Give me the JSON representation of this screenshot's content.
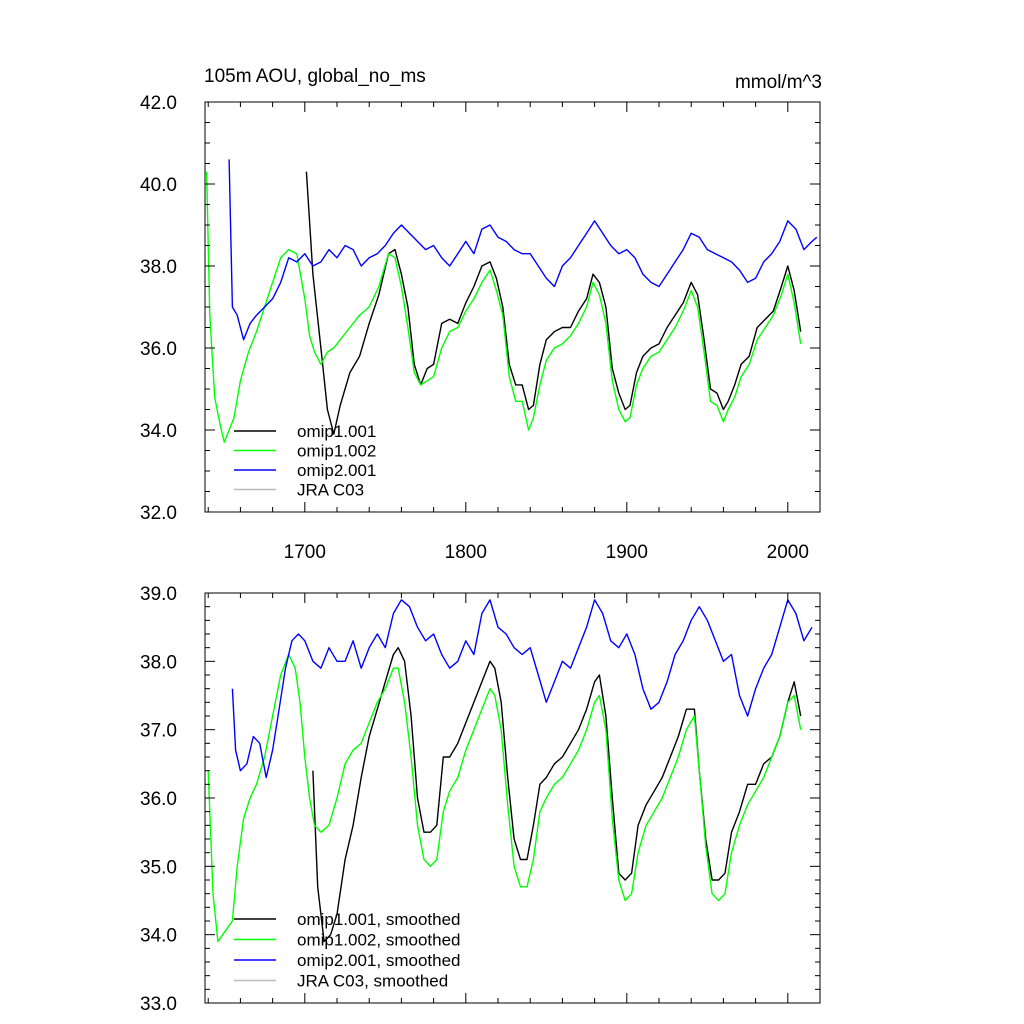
{
  "chart_data": [
    {
      "type": "line",
      "title": "105m AOU, global_no_ms",
      "units": "mmol/m^3",
      "xlim": [
        1638,
        2020
      ],
      "ylim": [
        32.0,
        42.0
      ],
      "xticks": [
        1700,
        1800,
        1900,
        2000
      ],
      "xtick_labels": [
        "1700",
        "1800",
        "1900",
        "2000"
      ],
      "yticks": [
        32,
        34,
        36,
        38,
        40,
        42
      ],
      "ytick_labels": [
        "32.0",
        "34.0",
        "36.0",
        "38.0",
        "40.0",
        "42.0"
      ],
      "legend_position": "bottom-left",
      "series": [
        {
          "name": "omip1.001",
          "color": "#000000",
          "x": [
            1701,
            1705,
            1710,
            1714,
            1718,
            1722,
            1728,
            1734,
            1740,
            1746,
            1752,
            1756,
            1760,
            1764,
            1768,
            1772,
            1776,
            1780,
            1785,
            1790,
            1795,
            1800,
            1805,
            1810,
            1815,
            1819,
            1823,
            1827,
            1831,
            1835,
            1839,
            1842,
            1846,
            1850,
            1855,
            1860,
            1865,
            1870,
            1875,
            1879,
            1883,
            1887,
            1891,
            1895,
            1899,
            1902,
            1906,
            1910,
            1915,
            1920,
            1925,
            1930,
            1935,
            1940,
            1944,
            1948,
            1952,
            1956,
            1960,
            1963,
            1967,
            1971,
            1976,
            1981,
            1986,
            1991,
            1996,
            2000,
            2004,
            2008
          ],
          "y": [
            40.3,
            37.8,
            36.0,
            34.5,
            33.9,
            34.6,
            35.4,
            35.8,
            36.6,
            37.3,
            38.3,
            38.4,
            37.8,
            37.0,
            35.6,
            35.1,
            35.5,
            35.6,
            36.6,
            36.7,
            36.6,
            37.1,
            37.5,
            38.0,
            38.1,
            37.7,
            37.0,
            35.6,
            35.1,
            35.1,
            34.5,
            34.6,
            35.6,
            36.2,
            36.4,
            36.5,
            36.5,
            36.9,
            37.2,
            37.8,
            37.6,
            37.0,
            35.5,
            34.9,
            34.5,
            34.6,
            35.4,
            35.8,
            36.0,
            36.1,
            36.5,
            36.8,
            37.1,
            37.6,
            37.3,
            36.2,
            35.0,
            34.9,
            34.5,
            34.7,
            35.1,
            35.6,
            35.8,
            36.5,
            36.7,
            36.9,
            37.5,
            38.0,
            37.4,
            36.4
          ]
        },
        {
          "name": "omip1.002",
          "color": "#00ff00",
          "x": [
            1639,
            1641,
            1644,
            1647,
            1650,
            1653,
            1656,
            1660,
            1665,
            1670,
            1675,
            1680,
            1685,
            1690,
            1695,
            1700,
            1703,
            1706,
            1710,
            1714,
            1718,
            1722,
            1728,
            1734,
            1740,
            1746,
            1752,
            1756,
            1760,
            1764,
            1768,
            1772,
            1776,
            1780,
            1785,
            1790,
            1795,
            1800,
            1805,
            1810,
            1815,
            1819,
            1823,
            1827,
            1831,
            1835,
            1839,
            1842,
            1846,
            1850,
            1855,
            1860,
            1865,
            1870,
            1875,
            1879,
            1883,
            1887,
            1891,
            1895,
            1899,
            1902,
            1906,
            1910,
            1915,
            1920,
            1925,
            1930,
            1935,
            1940,
            1944,
            1948,
            1952,
            1956,
            1960,
            1963,
            1967,
            1971,
            1976,
            1981,
            1986,
            1991,
            1996,
            2000,
            2004,
            2008
          ],
          "y": [
            40.3,
            36.8,
            34.8,
            34.2,
            33.7,
            34.0,
            34.3,
            35.2,
            35.9,
            36.4,
            37.0,
            37.6,
            38.2,
            38.4,
            38.3,
            37.2,
            36.3,
            35.9,
            35.6,
            35.9,
            36.0,
            36.2,
            36.5,
            36.8,
            37.0,
            37.5,
            38.3,
            38.2,
            37.5,
            36.5,
            35.4,
            35.1,
            35.2,
            35.3,
            36.0,
            36.4,
            36.5,
            36.9,
            37.2,
            37.6,
            37.9,
            37.4,
            36.8,
            35.3,
            34.7,
            34.7,
            34.0,
            34.3,
            35.1,
            35.7,
            36.0,
            36.1,
            36.3,
            36.6,
            37.0,
            37.6,
            37.3,
            36.6,
            35.2,
            34.5,
            34.2,
            34.3,
            35.1,
            35.5,
            35.8,
            35.9,
            36.2,
            36.5,
            36.9,
            37.4,
            37.0,
            35.9,
            34.7,
            34.6,
            34.2,
            34.5,
            34.8,
            35.3,
            35.6,
            36.2,
            36.5,
            36.8,
            37.3,
            37.8,
            37.1,
            36.1
          ]
        },
        {
          "name": "omip2.001",
          "color": "#0000ff",
          "x": [
            1653,
            1655,
            1658,
            1662,
            1666,
            1670,
            1675,
            1680,
            1685,
            1690,
            1695,
            1700,
            1705,
            1710,
            1715,
            1720,
            1725,
            1730,
            1735,
            1740,
            1745,
            1750,
            1755,
            1760,
            1765,
            1770,
            1775,
            1780,
            1785,
            1790,
            1795,
            1800,
            1805,
            1810,
            1815,
            1820,
            1825,
            1830,
            1835,
            1840,
            1845,
            1850,
            1855,
            1860,
            1865,
            1870,
            1875,
            1880,
            1885,
            1890,
            1895,
            1900,
            1905,
            1910,
            1915,
            1920,
            1925,
            1930,
            1935,
            1940,
            1945,
            1950,
            1955,
            1960,
            1965,
            1970,
            1975,
            1980,
            1985,
            1990,
            1995,
            2000,
            2005,
            2010,
            2015,
            2018
          ],
          "y": [
            40.6,
            37.0,
            36.8,
            36.2,
            36.6,
            36.8,
            37.0,
            37.2,
            37.6,
            38.2,
            38.1,
            38.3,
            38.0,
            38.1,
            38.4,
            38.2,
            38.5,
            38.4,
            38.0,
            38.2,
            38.3,
            38.5,
            38.8,
            39.0,
            38.8,
            38.6,
            38.4,
            38.5,
            38.2,
            38.0,
            38.3,
            38.6,
            38.3,
            38.9,
            39.0,
            38.7,
            38.6,
            38.4,
            38.3,
            38.3,
            38.0,
            37.7,
            37.5,
            38.0,
            38.2,
            38.5,
            38.8,
            39.1,
            38.8,
            38.5,
            38.3,
            38.4,
            38.2,
            37.8,
            37.6,
            37.5,
            37.8,
            38.1,
            38.4,
            38.8,
            38.7,
            38.4,
            38.3,
            38.2,
            38.1,
            37.9,
            37.6,
            37.7,
            38.1,
            38.3,
            38.6,
            39.1,
            38.9,
            38.4,
            38.6,
            38.7
          ]
        },
        {
          "name": "JRA C03",
          "color": "#bbbbbb",
          "x": [],
          "y": []
        }
      ]
    },
    {
      "type": "line",
      "title": "",
      "xlim": [
        1638,
        2020
      ],
      "ylim": [
        33.0,
        39.0
      ],
      "xticks": [
        1700,
        1800,
        1900,
        2000
      ],
      "yticks": [
        33,
        34,
        35,
        36,
        37,
        38,
        39
      ],
      "ytick_labels": [
        "33.0",
        "34.0",
        "35.0",
        "36.0",
        "37.0",
        "38.0",
        "39.0"
      ],
      "legend_position": "bottom-left",
      "series": [
        {
          "name": "omip1.001, smoothed",
          "color": "#000000",
          "x": [
            1705,
            1708,
            1712,
            1716,
            1720,
            1725,
            1730,
            1735,
            1740,
            1745,
            1750,
            1755,
            1758,
            1762,
            1766,
            1770,
            1774,
            1778,
            1782,
            1786,
            1790,
            1795,
            1800,
            1805,
            1810,
            1815,
            1818,
            1822,
            1826,
            1830,
            1834,
            1838,
            1842,
            1846,
            1850,
            1855,
            1860,
            1865,
            1870,
            1875,
            1880,
            1883,
            1887,
            1891,
            1895,
            1899,
            1903,
            1907,
            1912,
            1917,
            1922,
            1927,
            1932,
            1937,
            1942,
            1945,
            1949,
            1953,
            1957,
            1961,
            1965,
            1970,
            1975,
            1980,
            1985,
            1990,
            1995,
            2000,
            2004,
            2008
          ],
          "y": [
            36.4,
            34.7,
            33.9,
            34.0,
            34.3,
            35.1,
            35.6,
            36.3,
            36.9,
            37.3,
            37.7,
            38.1,
            38.2,
            38.0,
            37.2,
            36.0,
            35.5,
            35.5,
            35.6,
            36.6,
            36.6,
            36.8,
            37.1,
            37.4,
            37.7,
            38.0,
            37.9,
            37.4,
            36.3,
            35.4,
            35.1,
            35.1,
            35.6,
            36.2,
            36.3,
            36.5,
            36.6,
            36.8,
            37.0,
            37.3,
            37.7,
            37.8,
            37.2,
            36.0,
            34.9,
            34.8,
            34.9,
            35.6,
            35.9,
            36.1,
            36.3,
            36.6,
            36.9,
            37.3,
            37.3,
            36.4,
            35.4,
            34.8,
            34.8,
            34.9,
            35.5,
            35.8,
            36.2,
            36.2,
            36.5,
            36.6,
            36.9,
            37.4,
            37.7,
            37.2
          ]
        },
        {
          "name": "omip1.002, smoothed",
          "color": "#00ff00",
          "x": [
            1640,
            1643,
            1646,
            1649,
            1652,
            1655,
            1658,
            1662,
            1666,
            1670,
            1675,
            1680,
            1685,
            1690,
            1694,
            1697,
            1700,
            1703,
            1706,
            1710,
            1715,
            1720,
            1725,
            1730,
            1735,
            1740,
            1745,
            1750,
            1755,
            1758,
            1762,
            1766,
            1770,
            1774,
            1778,
            1782,
            1786,
            1790,
            1795,
            1800,
            1805,
            1810,
            1815,
            1818,
            1822,
            1826,
            1830,
            1834,
            1838,
            1842,
            1846,
            1850,
            1855,
            1860,
            1865,
            1870,
            1875,
            1880,
            1883,
            1887,
            1891,
            1895,
            1899,
            1903,
            1907,
            1912,
            1917,
            1922,
            1927,
            1932,
            1937,
            1942,
            1945,
            1949,
            1953,
            1957,
            1961,
            1965,
            1970,
            1975,
            1980,
            1985,
            1990,
            1995,
            2000,
            2004,
            2008
          ],
          "y": [
            36.4,
            34.6,
            33.9,
            34.0,
            34.1,
            34.2,
            35.0,
            35.7,
            36.0,
            36.2,
            36.6,
            37.2,
            37.8,
            38.1,
            37.9,
            37.4,
            36.6,
            36.0,
            35.6,
            35.5,
            35.6,
            36.0,
            36.5,
            36.7,
            36.8,
            37.1,
            37.4,
            37.6,
            37.9,
            37.9,
            37.4,
            36.6,
            35.6,
            35.1,
            35.0,
            35.1,
            35.8,
            36.1,
            36.3,
            36.7,
            37.0,
            37.3,
            37.6,
            37.5,
            37.0,
            35.9,
            35.0,
            34.7,
            34.7,
            35.1,
            35.8,
            36.0,
            36.2,
            36.3,
            36.5,
            36.7,
            37.0,
            37.4,
            37.5,
            37.0,
            35.7,
            34.8,
            34.5,
            34.6,
            35.2,
            35.6,
            35.8,
            36.0,
            36.3,
            36.6,
            37.0,
            37.2,
            36.4,
            35.3,
            34.6,
            34.5,
            34.6,
            35.2,
            35.6,
            35.9,
            36.1,
            36.3,
            36.6,
            36.9,
            37.4,
            37.5,
            37.0
          ]
        },
        {
          "name": "omip2.001, smoothed",
          "color": "#0000ff",
          "x": [
            1655,
            1657,
            1660,
            1664,
            1668,
            1672,
            1676,
            1680,
            1684,
            1688,
            1692,
            1696,
            1700,
            1705,
            1710,
            1715,
            1720,
            1725,
            1730,
            1735,
            1740,
            1745,
            1750,
            1755,
            1760,
            1765,
            1770,
            1775,
            1780,
            1785,
            1790,
            1795,
            1800,
            1805,
            1810,
            1815,
            1820,
            1825,
            1830,
            1835,
            1840,
            1845,
            1850,
            1855,
            1860,
            1865,
            1870,
            1875,
            1880,
            1885,
            1890,
            1895,
            1900,
            1905,
            1910,
            1915,
            1920,
            1925,
            1930,
            1935,
            1940,
            1945,
            1950,
            1955,
            1960,
            1965,
            1970,
            1975,
            1980,
            1985,
            1990,
            1995,
            2000,
            2005,
            2010,
            2015
          ],
          "y": [
            37.6,
            36.7,
            36.4,
            36.5,
            36.9,
            36.8,
            36.3,
            36.7,
            37.3,
            37.9,
            38.3,
            38.4,
            38.3,
            38.0,
            37.9,
            38.2,
            38.0,
            38.0,
            38.3,
            37.9,
            38.2,
            38.4,
            38.2,
            38.7,
            38.9,
            38.8,
            38.5,
            38.3,
            38.4,
            38.1,
            37.9,
            38.0,
            38.3,
            38.1,
            38.7,
            38.9,
            38.5,
            38.4,
            38.2,
            38.1,
            38.2,
            37.8,
            37.4,
            37.7,
            38.0,
            37.9,
            38.2,
            38.5,
            38.9,
            38.7,
            38.3,
            38.2,
            38.4,
            38.1,
            37.6,
            37.3,
            37.4,
            37.7,
            38.1,
            38.3,
            38.6,
            38.8,
            38.6,
            38.3,
            38.0,
            38.1,
            37.5,
            37.2,
            37.6,
            37.9,
            38.1,
            38.5,
            38.9,
            38.7,
            38.3,
            38.5
          ]
        },
        {
          "name": "JRA C03, smoothed",
          "color": "#bbbbbb",
          "x": [],
          "y": []
        }
      ]
    }
  ]
}
